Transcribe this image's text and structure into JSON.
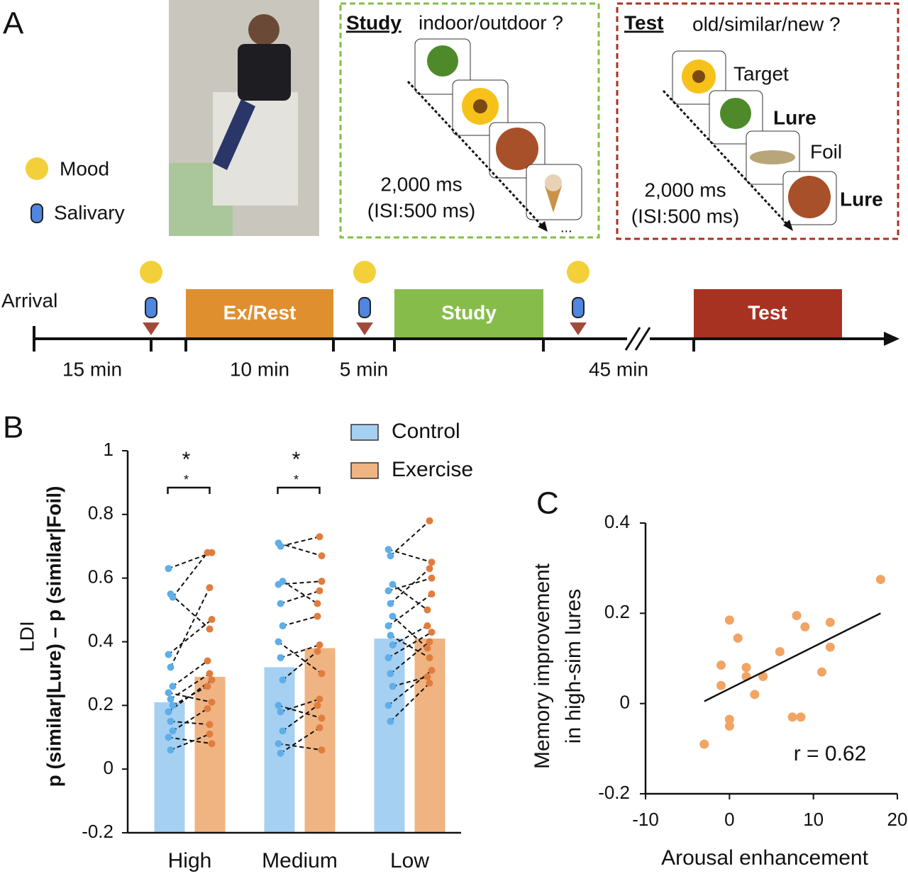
{
  "panel_a": {
    "letter": "A",
    "legend": {
      "mood": "Mood",
      "salivary": "Salivary"
    },
    "study": {
      "title": "Study",
      "question": "indoor/outdoor ?",
      "duration": "2,000 ms",
      "isi": "(ISI:500 ms)",
      "more": "..."
    },
    "test": {
      "title": "Test",
      "question": "old/similar/new ?",
      "items": [
        "Target",
        "Lure",
        "Foil",
        "Lure"
      ],
      "duration": "2,000 ms",
      "isi": "(ISI:500 ms)"
    },
    "timeline": {
      "start": "Arrival",
      "phases": [
        "Ex/Rest",
        "Study",
        "Test"
      ],
      "intervals": [
        "15 min",
        "10 min",
        "5 min",
        "45 min"
      ]
    }
  },
  "chart_data": [
    {
      "type": "bar",
      "letter": "B",
      "ylabel_short": "LDI",
      "ylabel": "p (similar|Lure) – p (similar|Foil)",
      "categories": [
        "High",
        "Medium",
        "Low"
      ],
      "series": [
        {
          "name": "Control",
          "color": "#a6d0f2",
          "point_color": "#5eaee8",
          "values": [
            0.21,
            0.32,
            0.41
          ],
          "points": [
            [
              0.63,
              0.55,
              0.54,
              0.36,
              0.32,
              0.26,
              0.24,
              0.22,
              0.2,
              0.18,
              0.15,
              0.12,
              0.1,
              0.06
            ],
            [
              0.71,
              0.7,
              0.59,
              0.58,
              0.52,
              0.45,
              0.4,
              0.35,
              0.28,
              0.2,
              0.18,
              0.12,
              0.08,
              0.05
            ],
            [
              0.69,
              0.67,
              0.58,
              0.56,
              0.52,
              0.48,
              0.45,
              0.42,
              0.39,
              0.35,
              0.3,
              0.26,
              0.2,
              0.15
            ]
          ]
        },
        {
          "name": "Exercise",
          "color": "#f0b482",
          "point_color": "#e07d3e",
          "values": [
            0.29,
            0.38,
            0.41
          ],
          "points": [
            [
              0.68,
              0.44,
              0.68,
              0.47,
              0.57,
              0.34,
              0.21,
              0.3,
              0.26,
              0.28,
              0.14,
              0.19,
              0.08,
              0.11
            ],
            [
              0.67,
              0.73,
              0.52,
              0.59,
              0.56,
              0.48,
              0.3,
              0.39,
              0.37,
              0.16,
              0.22,
              0.2,
              0.06,
              0.13
            ],
            [
              0.65,
              0.78,
              0.5,
              0.6,
              0.63,
              0.38,
              0.55,
              0.35,
              0.45,
              0.43,
              0.4,
              0.29,
              0.31,
              0.27
            ]
          ]
        }
      ],
      "significance": [
        [
          "*",
          "*"
        ],
        [
          "*",
          "*"
        ],
        null
      ],
      "ylim": [
        -0.2,
        1
      ],
      "yticks": [
        -0.2,
        0,
        0.2,
        0.4,
        0.6,
        0.8,
        1
      ]
    },
    {
      "type": "scatter",
      "letter": "C",
      "xlabel": "Arousal enhancement",
      "ylabel": [
        "Memory improvement",
        "in high-sim lures"
      ],
      "annotation": "r = 0.62",
      "color": "#f2a464",
      "x": [
        -3,
        -1,
        -1,
        0,
        0,
        0,
        1,
        2,
        2,
        3,
        4,
        6,
        7.5,
        8,
        8.5,
        9,
        11,
        12,
        12,
        18
      ],
      "y": [
        -0.09,
        0.085,
        0.04,
        0.185,
        -0.035,
        -0.05,
        0.145,
        0.08,
        0.06,
        0.02,
        0.06,
        0.115,
        -0.03,
        0.195,
        -0.03,
        0.17,
        0.07,
        0.18,
        0.125,
        0.275
      ],
      "fit": {
        "x": [
          -3,
          18
        ],
        "y": [
          0.005,
          0.2
        ]
      },
      "xlim": [
        -10,
        20
      ],
      "xticks": [
        -10,
        0,
        10,
        20
      ],
      "ylim": [
        -0.2,
        0.4
      ],
      "yticks": [
        -0.2,
        0,
        0.2,
        0.4
      ]
    }
  ]
}
